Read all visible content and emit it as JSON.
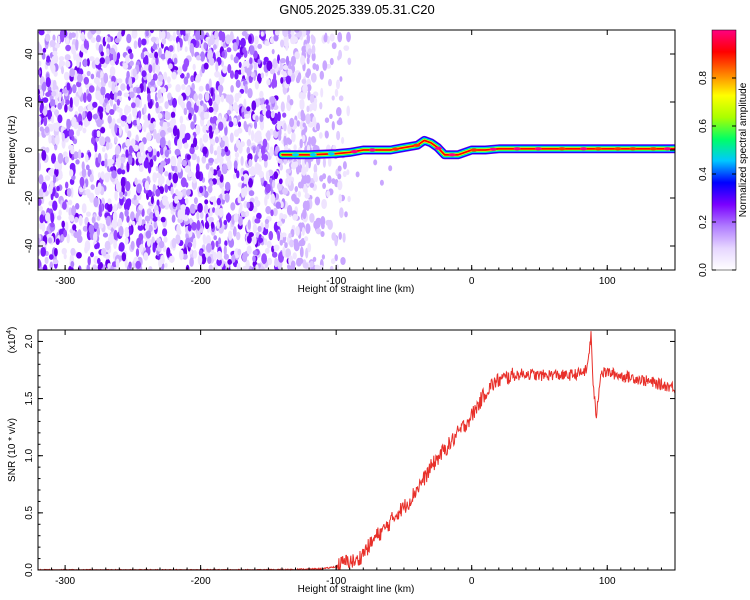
{
  "title": "GN05.2025.339.05.31.C20",
  "chart_data": [
    {
      "type": "heatmap",
      "name": "spectrogram",
      "xlabel": "Height of straight line (km)",
      "ylabel": "Frequency (Hz)",
      "xlim": [
        -320,
        150
      ],
      "ylim": [
        -50,
        50
      ],
      "xticks": [
        -300,
        -200,
        -100,
        0,
        100
      ],
      "yticks": [
        -40,
        -20,
        0,
        20,
        40
      ],
      "colorbar": {
        "label": "Normalized spectral amplitude",
        "range": [
          0,
          1
        ],
        "ticks": [
          0.0,
          0.2,
          0.4,
          0.6,
          0.8
        ],
        "tick_labels": [
          "0.0",
          "0.2",
          "0.4",
          "0.6",
          "0.8"
        ],
        "colormap": [
          "#ffffff",
          "#e6d6ff",
          "#b07cff",
          "#7a00ff",
          "#0000ff",
          "#00c8ff",
          "#00ff66",
          "#aaff00",
          "#ffff00",
          "#ff8000",
          "#ff0000",
          "#ff0080"
        ]
      },
      "noise_region": {
        "x_start": -320,
        "x_end": -115
      },
      "signal_track": {
        "x": [
          -140,
          -120,
          -100,
          -90,
          -80,
          -70,
          -60,
          -50,
          -40,
          -35,
          -30,
          -25,
          -20,
          -15,
          -10,
          0,
          10,
          20,
          40,
          60,
          80,
          100,
          120,
          150
        ],
        "freq": [
          -2,
          -2,
          -1.5,
          -1,
          0,
          0,
          0,
          1,
          2,
          4,
          3,
          1,
          -2,
          -2,
          -2,
          0,
          0,
          0.5,
          0.5,
          0.5,
          0.5,
          0.5,
          0.5,
          0.5
        ]
      }
    },
    {
      "type": "line",
      "name": "snr",
      "xlabel": "Height of straight line (km)",
      "ylabel": "SNR (10 * v/v)",
      "scale_label": "(x10",
      "scale_exponent": "4",
      "xlim": [
        -320,
        150
      ],
      "ylim": [
        0,
        2.1
      ],
      "xticks": [
        -300,
        -200,
        -100,
        0,
        100
      ],
      "yticks": [
        0.0,
        0.5,
        1.0,
        1.5,
        2.0
      ],
      "ytick_labels": [
        "0.0",
        "0.5",
        "1.0",
        "1.5",
        "2.0"
      ],
      "color": "#e8302a",
      "series": [
        {
          "x": [
            -320,
            -250,
            -200,
            -150,
            -110,
            -100,
            -95,
            -90,
            -85,
            -80,
            -75,
            -70,
            -65,
            -60,
            -55,
            -50,
            -45,
            -40,
            -35,
            -30,
            -25,
            -20,
            -15,
            -10,
            -5,
            0,
            5,
            10,
            15,
            20,
            25,
            30,
            40,
            50,
            60,
            70,
            80,
            85,
            88,
            90,
            92,
            95,
            100,
            110,
            120,
            130,
            140,
            150
          ],
          "y": [
            0.0,
            0.0,
            0.0,
            0.0,
            0.01,
            0.03,
            0.06,
            0.08,
            0.07,
            0.15,
            0.22,
            0.3,
            0.35,
            0.42,
            0.5,
            0.55,
            0.62,
            0.72,
            0.8,
            0.9,
            0.98,
            1.05,
            1.12,
            1.2,
            1.27,
            1.35,
            1.45,
            1.55,
            1.62,
            1.66,
            1.68,
            1.7,
            1.72,
            1.7,
            1.71,
            1.7,
            1.72,
            1.75,
            2.05,
            1.55,
            1.35,
            1.72,
            1.73,
            1.7,
            1.68,
            1.65,
            1.62,
            1.6
          ]
        }
      ]
    }
  ]
}
